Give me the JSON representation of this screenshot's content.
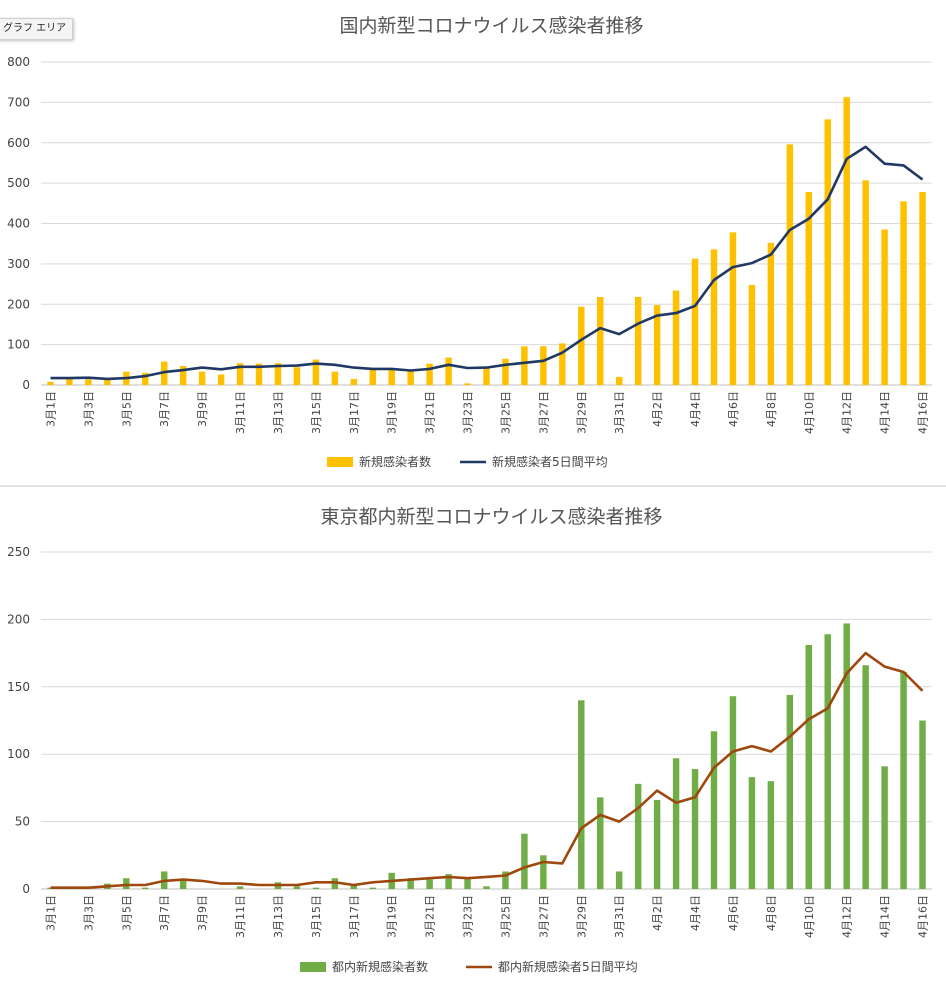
{
  "ui": {
    "tooltip": "グラフ エリア"
  },
  "chart_data": [
    {
      "type": "bar",
      "title": "国内新型コロナウイルス感染者推移",
      "xlabel": "",
      "ylabel": "",
      "ylim": [
        0,
        800
      ],
      "yticks": [
        0,
        100,
        200,
        300,
        400,
        500,
        600,
        700,
        800
      ],
      "grid": true,
      "legend": "bottom",
      "categories": [
        "3月1日",
        "3月2日",
        "3月3日",
        "3月4日",
        "3月5日",
        "3月6日",
        "3月7日",
        "3月8日",
        "3月9日",
        "3月10日",
        "3月11日",
        "3月12日",
        "3月13日",
        "3月14日",
        "3月15日",
        "3月16日",
        "3月17日",
        "3月18日",
        "3月19日",
        "3月20日",
        "3月21日",
        "3月22日",
        "3月23日",
        "3月24日",
        "3月25日",
        "3月26日",
        "3月27日",
        "3月28日",
        "3月29日",
        "3月30日",
        "3月31日",
        "4月1日",
        "4月2日",
        "4月3日",
        "4月4日",
        "4月5日",
        "4月6日",
        "4月7日",
        "4月8日",
        "4月9日",
        "4月10日",
        "4月11日",
        "4月12日",
        "4月13日",
        "4月14日",
        "4月15日",
        "4月16日"
      ],
      "series": [
        {
          "name": "新規感染者数",
          "kind": "bar",
          "color": "#FFC000",
          "values": [
            8,
            15,
            14,
            13,
            33,
            30,
            58,
            47,
            33,
            26,
            54,
            53,
            54,
            44,
            63,
            33,
            15,
            39,
            38,
            35,
            53,
            68,
            4,
            41,
            65,
            96,
            96,
            103,
            194,
            218,
            20,
            218,
            198,
            234,
            313,
            336,
            378,
            248,
            352,
            596,
            478,
            658,
            713,
            507,
            385,
            455,
            478
          ]
        },
        {
          "name": "新規感染者5日間平均",
          "kind": "line",
          "color": "#203864",
          "values": [
            17,
            17,
            18,
            15,
            17,
            22,
            32,
            37,
            43,
            39,
            45,
            45,
            47,
            48,
            53,
            50,
            43,
            40,
            40,
            36,
            40,
            50,
            42,
            43,
            50,
            55,
            60,
            80,
            112,
            141,
            126,
            152,
            172,
            178,
            196,
            260,
            292,
            302,
            323,
            384,
            412,
            460,
            560,
            590,
            548,
            544,
            509
          ]
        }
      ],
      "tick_labels": [
        "3月1日",
        "3月3日",
        "3月5日",
        "3月7日",
        "3月9日",
        "3月11日",
        "3月13日",
        "3月15日",
        "3月17日",
        "3月19日",
        "3月21日",
        "3月23日",
        "3月25日",
        "3月27日",
        "3月29日",
        "3月31日",
        "4月2日",
        "4月4日",
        "4月6日",
        "4月8日",
        "4月10日",
        "4月12日",
        "4月14日",
        "4月16日"
      ]
    },
    {
      "type": "bar",
      "title": "東京都内新型コロナウイルス感染者推移",
      "xlabel": "",
      "ylabel": "",
      "ylim": [
        0,
        250
      ],
      "yticks": [
        0,
        50,
        100,
        150,
        200,
        250
      ],
      "grid": true,
      "legend": "bottom",
      "categories": [
        "3月1日",
        "3月2日",
        "3月3日",
        "3月4日",
        "3月5日",
        "3月6日",
        "3月7日",
        "3月8日",
        "3月9日",
        "3月10日",
        "3月11日",
        "3月12日",
        "3月13日",
        "3月14日",
        "3月15日",
        "3月16日",
        "3月17日",
        "3月18日",
        "3月19日",
        "3月20日",
        "3月21日",
        "3月22日",
        "3月23日",
        "3月24日",
        "3月25日",
        "3月26日",
        "3月27日",
        "3月28日",
        "3月29日",
        "3月30日",
        "3月31日",
        "4月1日",
        "4月2日",
        "4月3日",
        "4月4日",
        "4月5日",
        "4月6日",
        "4月7日",
        "4月8日",
        "4月9日",
        "4月10日",
        "4月11日",
        "4月12日",
        "4月13日",
        "4月14日",
        "4月15日",
        "4月16日"
      ],
      "series": [
        {
          "name": "都内新規感染者数",
          "kind": "bar",
          "color": "#70AD47",
          "values": [
            1,
            0,
            0,
            4,
            8,
            1,
            13,
            6,
            0,
            0,
            2,
            0,
            5,
            2,
            1,
            8,
            3,
            1,
            12,
            8,
            7,
            11,
            8,
            2,
            13,
            41,
            25,
            0,
            140,
            68,
            13,
            78,
            66,
            97,
            89,
            117,
            143,
            83,
            80,
            144,
            181,
            189,
            197,
            166,
            91,
            161,
            125
          ]
        },
        {
          "name": "都内新規感染者5日間平均",
          "kind": "line",
          "color": "#9E480E",
          "values": [
            1,
            1,
            1,
            2,
            3,
            3,
            6,
            7,
            6,
            4,
            4,
            3,
            3,
            3,
            5,
            5,
            3,
            5,
            6,
            7,
            8,
            9,
            8,
            9,
            10,
            16,
            20,
            19,
            45,
            55,
            50,
            60,
            73,
            64,
            68,
            90,
            102,
            106,
            102,
            113,
            126,
            134,
            160,
            175,
            165,
            161,
            147
          ]
        }
      ],
      "tick_labels": [
        "3月1日",
        "3月3日",
        "3月5日",
        "3月7日",
        "3月9日",
        "3月11日",
        "3月13日",
        "3月15日",
        "3月17日",
        "3月19日",
        "3月21日",
        "3月23日",
        "3月25日",
        "3月27日",
        "3月29日",
        "3月31日",
        "4月2日",
        "4月4日",
        "4月6日",
        "4月8日",
        "4月10日",
        "4月12日",
        "4月14日",
        "4月16日"
      ]
    }
  ]
}
